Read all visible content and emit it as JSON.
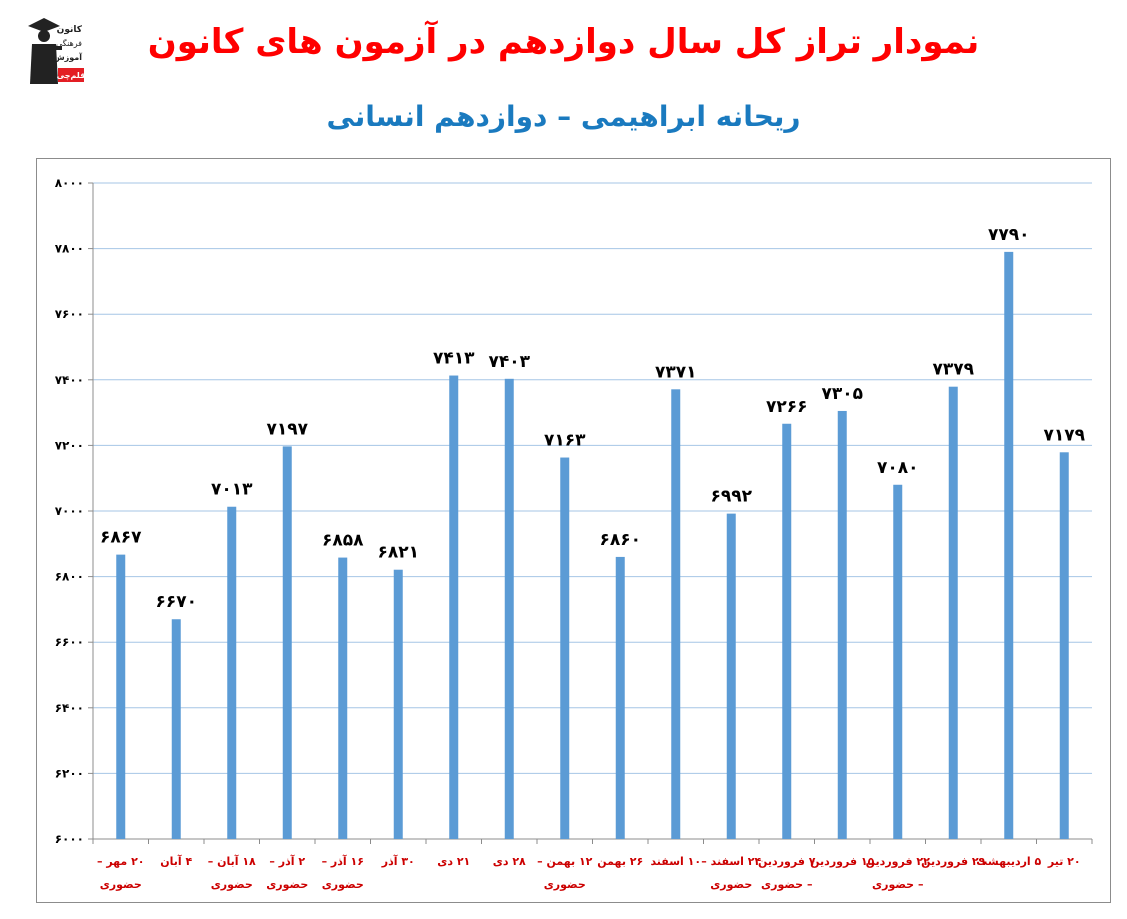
{
  "header": {
    "title": "نمودار تراز کل سال دوازدهم در آزمون های کانون",
    "subtitle": "ریحانه ابراهیمی – دوازدهم انسانی",
    "title_color": "#ff0000",
    "subtitle_color": "#1a7abf"
  },
  "logo": {
    "line1": "کانون",
    "line2": "فرهنگی",
    "line3": "آموزش",
    "badge": "قلم‌چی"
  },
  "chart_data": {
    "type": "bar",
    "categories": [
      "۲۰ مهر – حضوری",
      "۴ آبان",
      "۱۸ آبان – حضوری",
      "۲ آذر – حضوری",
      "۱۶ آذر – حضوری",
      "۳۰ آذر",
      "۲۱ دی",
      "۲۸ دی",
      "۱۲ بهمن – حضوری",
      "۲۶ بهمن",
      "۱۰ اسفند",
      "۲۴ اسفند – حضوری",
      "۷ فروردین – حضوری",
      "۱۵ فروردین",
      "۲۲ فروردین – حضوری",
      "۲۹ فروردین",
      "۵ اردیبهشت",
      "۲۰ تیر"
    ],
    "category_lines": [
      [
        "۲۰ مهر –",
        "حضوری"
      ],
      [
        "۴ آبان"
      ],
      [
        "۱۸ آبان –",
        "حضوری"
      ],
      [
        "۲ آذر –",
        "حضوری"
      ],
      [
        "۱۶ آذر –",
        "حضوری"
      ],
      [
        "۳۰ آذر"
      ],
      [
        "۲۱ دی"
      ],
      [
        "۲۸ دی"
      ],
      [
        "۱۲ بهمن –",
        "حضوری"
      ],
      [
        "۲۶ بهمن"
      ],
      [
        "۱۰ اسفند"
      ],
      [
        "۲۴ اسفند –",
        "حضوری"
      ],
      [
        "۷ فروردین",
        "– حضوری"
      ],
      [
        "۱۵ فروردین"
      ],
      [
        "۲۲ فروردین",
        "– حضوری"
      ],
      [
        "۲۹ فروردین"
      ],
      [
        "۵ اردیبهشت"
      ],
      [
        "۲۰ تیر"
      ]
    ],
    "values": [
      6867,
      6670,
      7013,
      7197,
      6858,
      6821,
      7413,
      7403,
      7163,
      6860,
      7371,
      6992,
      7266,
      7305,
      7080,
      7379,
      7790,
      7179
    ],
    "value_labels": [
      "۶۸۶۷",
      "۶۶۷۰",
      "۷۰۱۳",
      "۷۱۹۷",
      "۶۸۵۸",
      "۶۸۲۱",
      "۷۴۱۳",
      "۷۴۰۳",
      "۷۱۶۳",
      "۶۸۶۰",
      "۷۳۷۱",
      "۶۹۹۲",
      "۷۲۶۶",
      "۷۳۰۵",
      "۷۰۸۰",
      "۷۳۷۹",
      "۷۷۹۰",
      "۷۱۷۹"
    ],
    "yticks": [
      6000,
      6200,
      6400,
      6600,
      6800,
      7000,
      7200,
      7400,
      7600,
      7800,
      8000
    ],
    "ytick_labels": [
      "۶۰۰۰",
      "۶۲۰۰",
      "۶۴۰۰",
      "۶۶۰۰",
      "۶۸۰۰",
      "۷۰۰۰",
      "۷۲۰۰",
      "۷۴۰۰",
      "۷۶۰۰",
      "۷۸۰۰",
      "۸۰۰۰"
    ],
    "ylim": [
      6000,
      8000
    ],
    "grid": true,
    "bar_color": "#5b9bd5",
    "gridline_color": "#a6c6e6",
    "category_label_color": "#cc0000",
    "value_label_color": "#000000"
  }
}
